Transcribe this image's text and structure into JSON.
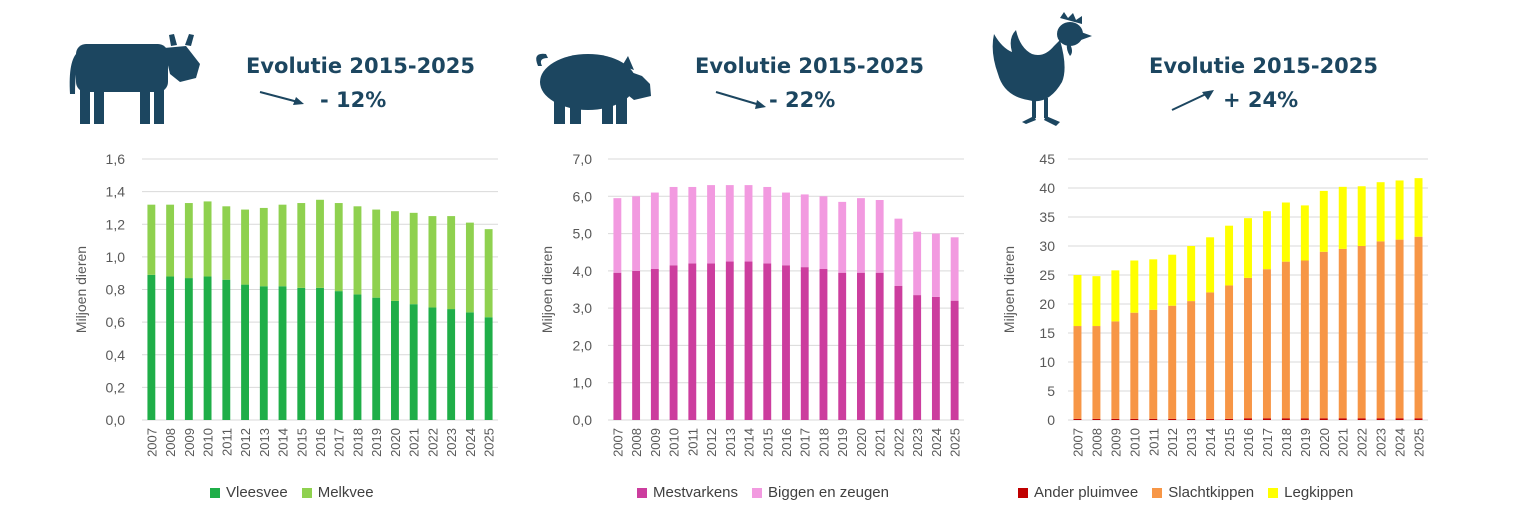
{
  "colors": {
    "icon": "#1c4660",
    "grid": "#d9d9d9",
    "vleesvee": "#1fae48",
    "melkvee": "#8fd14f",
    "mestvarkens": "#cc3d9e",
    "biggen": "#f29ae0",
    "ander": "#c00000",
    "slacht": "#f79646",
    "leg": "#ffff00"
  },
  "panels": [
    {
      "icon": "cow-icon",
      "evolution_title": "Evolutie 2015-2025",
      "evolution_value": "- 12%",
      "arrow": "down-right-arrow-icon"
    },
    {
      "icon": "pig-icon",
      "evolution_title": "Evolutie 2015-2025",
      "evolution_value": "- 22%",
      "arrow": "down-right-arrow-icon"
    },
    {
      "icon": "chicken-icon",
      "evolution_title": "Evolutie 2015-2025",
      "evolution_value": "+ 24%",
      "arrow": "up-right-arrow-icon"
    }
  ],
  "chart_data": [
    {
      "type": "bar",
      "stacked": true,
      "ylabel": "Miljoen dieren",
      "ylim": [
        0,
        1.6
      ],
      "yticks": [
        "0,0",
        "0,2",
        "0,4",
        "0,6",
        "0,8",
        "1,0",
        "1,2",
        "1,4",
        "1,6"
      ],
      "categories": [
        "2007",
        "2008",
        "2009",
        "2010",
        "2011",
        "2012",
        "2013",
        "2014",
        "2015",
        "2016",
        "2017",
        "2018",
        "2019",
        "2020",
        "2021",
        "2022",
        "2023",
        "2024",
        "2025"
      ],
      "series": [
        {
          "name": "Vleesvee",
          "color": "#1fae48",
          "values": [
            0.89,
            0.88,
            0.87,
            0.88,
            0.86,
            0.83,
            0.82,
            0.82,
            0.81,
            0.81,
            0.79,
            0.77,
            0.75,
            0.73,
            0.71,
            0.69,
            0.68,
            0.66,
            0.63
          ]
        },
        {
          "name": "Melkvee",
          "color": "#8fd14f",
          "values": [
            0.43,
            0.44,
            0.46,
            0.46,
            0.45,
            0.46,
            0.48,
            0.5,
            0.52,
            0.54,
            0.54,
            0.54,
            0.54,
            0.55,
            0.56,
            0.56,
            0.57,
            0.55,
            0.54
          ]
        }
      ],
      "legend": [
        "Vleesvee",
        "Melkvee"
      ],
      "grid": true,
      "legend_position": "bottom"
    },
    {
      "type": "bar",
      "stacked": true,
      "ylabel": "Miljoen dieren",
      "ylim": [
        0,
        7
      ],
      "yticks": [
        "0,0",
        "1,0",
        "2,0",
        "3,0",
        "4,0",
        "5,0",
        "6,0",
        "7,0"
      ],
      "categories": [
        "2007",
        "2008",
        "2009",
        "2010",
        "2011",
        "2012",
        "2013",
        "2014",
        "2015",
        "2016",
        "2017",
        "2018",
        "2019",
        "2020",
        "2021",
        "2022",
        "2023",
        "2024",
        "2025"
      ],
      "series": [
        {
          "name": "Mestvarkens",
          "color": "#cc3d9e",
          "values": [
            3.95,
            4.0,
            4.05,
            4.15,
            4.2,
            4.2,
            4.25,
            4.25,
            4.2,
            4.15,
            4.1,
            4.05,
            3.95,
            3.95,
            3.95,
            3.6,
            3.35,
            3.3,
            3.2
          ]
        },
        {
          "name": "Biggen en zeugen",
          "color": "#f29ae0",
          "values": [
            2.0,
            2.0,
            2.05,
            2.1,
            2.05,
            2.1,
            2.05,
            2.05,
            2.05,
            1.95,
            1.95,
            1.95,
            1.9,
            2.0,
            1.95,
            1.8,
            1.7,
            1.7,
            1.7
          ]
        }
      ],
      "legend": [
        "Mestvarkens",
        "Biggen en zeugen"
      ],
      "grid": true,
      "legend_position": "bottom"
    },
    {
      "type": "bar",
      "stacked": true,
      "ylabel": "Miljoen dieren",
      "ylim": [
        0,
        45
      ],
      "yticks": [
        "0",
        "5",
        "10",
        "15",
        "20",
        "25",
        "30",
        "35",
        "40",
        "45"
      ],
      "categories": [
        "2007",
        "2008",
        "2009",
        "2010",
        "2011",
        "2012",
        "2013",
        "2014",
        "2015",
        "2016",
        "2017",
        "2018",
        "2019",
        "2020",
        "2021",
        "2022",
        "2023",
        "2024",
        "2025"
      ],
      "series": [
        {
          "name": "Ander pluimvee",
          "color": "#c00000",
          "values": [
            0.2,
            0.2,
            0.2,
            0.2,
            0.2,
            0.2,
            0.2,
            0.2,
            0.2,
            0.3,
            0.3,
            0.3,
            0.3,
            0.3,
            0.3,
            0.3,
            0.3,
            0.3,
            0.3
          ]
        },
        {
          "name": "Slachtkippen",
          "color": "#f79646",
          "values": [
            16.0,
            16.0,
            16.8,
            18.3,
            18.8,
            19.5,
            20.3,
            21.8,
            23.0,
            24.2,
            25.7,
            27.0,
            27.2,
            28.7,
            29.2,
            29.7,
            30.5,
            30.8,
            31.3
          ]
        },
        {
          "name": "Legkippen",
          "color": "#ffff00",
          "values": [
            8.8,
            8.6,
            8.8,
            9.0,
            8.7,
            8.8,
            9.5,
            9.5,
            10.3,
            10.3,
            10.0,
            10.2,
            9.5,
            10.5,
            10.7,
            10.3,
            10.2,
            10.2,
            10.1
          ]
        }
      ],
      "legend": [
        "Ander pluimvee",
        "Slachtkippen",
        "Legkippen"
      ],
      "grid": true,
      "legend_position": "bottom"
    }
  ]
}
